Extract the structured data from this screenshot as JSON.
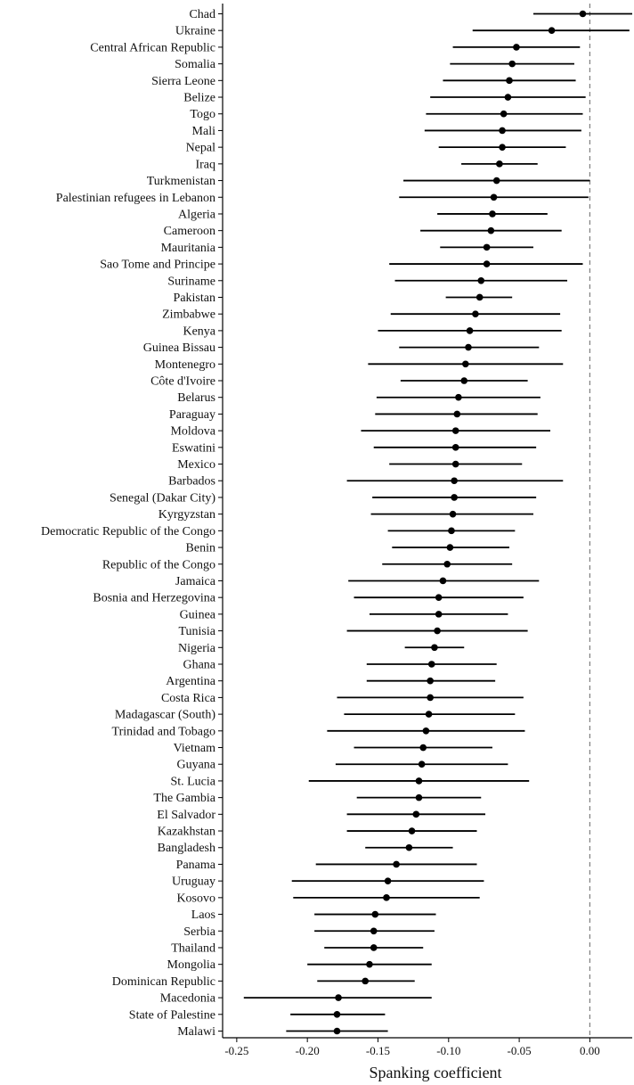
{
  "chart_data": {
    "type": "forest",
    "xlabel": "Spanking coefficient",
    "ylabel": "",
    "xlim": [
      -0.26,
      0.03
    ],
    "xticks": [
      -0.25,
      -0.2,
      -0.15,
      -0.1,
      -0.05,
      0.0
    ],
    "xtick_labels": [
      "-0.25",
      "-0.20",
      "-0.15",
      "-0.10",
      "-0.05",
      "0.00"
    ],
    "reference_line": 0,
    "grid": false,
    "colors": {
      "point": "#000000",
      "ci": "#000000",
      "ref_line": "#7f7f7f"
    },
    "rows": [
      {
        "label": "Chad",
        "estimate": -0.005,
        "ci_low": -0.04,
        "ci_high": 0.03
      },
      {
        "label": "Ukraine",
        "estimate": -0.027,
        "ci_low": -0.083,
        "ci_high": 0.028
      },
      {
        "label": "Central African Republic",
        "estimate": -0.052,
        "ci_low": -0.097,
        "ci_high": -0.007
      },
      {
        "label": "Somalia",
        "estimate": -0.055,
        "ci_low": -0.099,
        "ci_high": -0.011
      },
      {
        "label": "Sierra Leone",
        "estimate": -0.057,
        "ci_low": -0.104,
        "ci_high": -0.01
      },
      {
        "label": "Belize",
        "estimate": -0.058,
        "ci_low": -0.113,
        "ci_high": -0.003
      },
      {
        "label": "Togo",
        "estimate": -0.061,
        "ci_low": -0.116,
        "ci_high": -0.005
      },
      {
        "label": "Mali",
        "estimate": -0.062,
        "ci_low": -0.117,
        "ci_high": -0.006
      },
      {
        "label": "Nepal",
        "estimate": -0.062,
        "ci_low": -0.107,
        "ci_high": -0.017
      },
      {
        "label": "Iraq",
        "estimate": -0.064,
        "ci_low": -0.091,
        "ci_high": -0.037
      },
      {
        "label": "Turkmenistan",
        "estimate": -0.066,
        "ci_low": -0.132,
        "ci_high": 0.0
      },
      {
        "label": "Palestinian refugees in Lebanon",
        "estimate": -0.068,
        "ci_low": -0.135,
        "ci_high": -0.001
      },
      {
        "label": "Algeria",
        "estimate": -0.069,
        "ci_low": -0.108,
        "ci_high": -0.03
      },
      {
        "label": "Cameroon",
        "estimate": -0.07,
        "ci_low": -0.12,
        "ci_high": -0.02
      },
      {
        "label": "Mauritania",
        "estimate": -0.073,
        "ci_low": -0.106,
        "ci_high": -0.04
      },
      {
        "label": "Sao Tome and Principe",
        "estimate": -0.073,
        "ci_low": -0.142,
        "ci_high": -0.005
      },
      {
        "label": "Suriname",
        "estimate": -0.077,
        "ci_low": -0.138,
        "ci_high": -0.016
      },
      {
        "label": "Pakistan",
        "estimate": -0.078,
        "ci_low": -0.102,
        "ci_high": -0.055
      },
      {
        "label": "Zimbabwe",
        "estimate": -0.081,
        "ci_low": -0.141,
        "ci_high": -0.021
      },
      {
        "label": "Kenya",
        "estimate": -0.085,
        "ci_low": -0.15,
        "ci_high": -0.02
      },
      {
        "label": "Guinea Bissau",
        "estimate": -0.086,
        "ci_low": -0.135,
        "ci_high": -0.036
      },
      {
        "label": "Montenegro",
        "estimate": -0.088,
        "ci_low": -0.157,
        "ci_high": -0.019
      },
      {
        "label": "Côte d'Ivoire",
        "estimate": -0.089,
        "ci_low": -0.134,
        "ci_high": -0.044
      },
      {
        "label": "Belarus",
        "estimate": -0.093,
        "ci_low": -0.151,
        "ci_high": -0.035
      },
      {
        "label": "Paraguay",
        "estimate": -0.094,
        "ci_low": -0.152,
        "ci_high": -0.037
      },
      {
        "label": "Moldova",
        "estimate": -0.095,
        "ci_low": -0.162,
        "ci_high": -0.028
      },
      {
        "label": "Eswatini",
        "estimate": -0.095,
        "ci_low": -0.153,
        "ci_high": -0.038
      },
      {
        "label": "Mexico",
        "estimate": -0.095,
        "ci_low": -0.142,
        "ci_high": -0.048
      },
      {
        "label": "Barbados",
        "estimate": -0.096,
        "ci_low": -0.172,
        "ci_high": -0.019
      },
      {
        "label": "Senegal (Dakar City)",
        "estimate": -0.096,
        "ci_low": -0.154,
        "ci_high": -0.038
      },
      {
        "label": "Kyrgyzstan",
        "estimate": -0.097,
        "ci_low": -0.155,
        "ci_high": -0.04
      },
      {
        "label": "Democratic Republic of the Congo",
        "estimate": -0.098,
        "ci_low": -0.143,
        "ci_high": -0.053
      },
      {
        "label": "Benin",
        "estimate": -0.099,
        "ci_low": -0.14,
        "ci_high": -0.057
      },
      {
        "label": "Republic of the Congo",
        "estimate": -0.101,
        "ci_low": -0.147,
        "ci_high": -0.055
      },
      {
        "label": "Jamaica",
        "estimate": -0.104,
        "ci_low": -0.171,
        "ci_high": -0.036
      },
      {
        "label": "Bosnia and Herzegovina",
        "estimate": -0.107,
        "ci_low": -0.167,
        "ci_high": -0.047
      },
      {
        "label": "Guinea",
        "estimate": -0.107,
        "ci_low": -0.156,
        "ci_high": -0.058
      },
      {
        "label": "Tunisia",
        "estimate": -0.108,
        "ci_low": -0.172,
        "ci_high": -0.044
      },
      {
        "label": "Nigeria",
        "estimate": -0.11,
        "ci_low": -0.131,
        "ci_high": -0.089
      },
      {
        "label": "Ghana",
        "estimate": -0.112,
        "ci_low": -0.158,
        "ci_high": -0.066
      },
      {
        "label": "Argentina",
        "estimate": -0.113,
        "ci_low": -0.158,
        "ci_high": -0.067
      },
      {
        "label": "Costa Rica",
        "estimate": -0.113,
        "ci_low": -0.179,
        "ci_high": -0.047
      },
      {
        "label": "Madagascar (South)",
        "estimate": -0.114,
        "ci_low": -0.174,
        "ci_high": -0.053
      },
      {
        "label": "Trinidad and Tobago",
        "estimate": -0.116,
        "ci_low": -0.186,
        "ci_high": -0.046
      },
      {
        "label": "Vietnam",
        "estimate": -0.118,
        "ci_low": -0.167,
        "ci_high": -0.069
      },
      {
        "label": "Guyana",
        "estimate": -0.119,
        "ci_low": -0.18,
        "ci_high": -0.058
      },
      {
        "label": "St. Lucia",
        "estimate": -0.121,
        "ci_low": -0.199,
        "ci_high": -0.043
      },
      {
        "label": "The Gambia",
        "estimate": -0.121,
        "ci_low": -0.165,
        "ci_high": -0.077
      },
      {
        "label": "El Salvador",
        "estimate": -0.123,
        "ci_low": -0.172,
        "ci_high": -0.074
      },
      {
        "label": "Kazakhstan",
        "estimate": -0.126,
        "ci_low": -0.172,
        "ci_high": -0.08
      },
      {
        "label": "Bangladesh",
        "estimate": -0.128,
        "ci_low": -0.159,
        "ci_high": -0.097
      },
      {
        "label": "Panama",
        "estimate": -0.137,
        "ci_low": -0.194,
        "ci_high": -0.08
      },
      {
        "label": "Uruguay",
        "estimate": -0.143,
        "ci_low": -0.211,
        "ci_high": -0.075
      },
      {
        "label": "Kosovo",
        "estimate": -0.144,
        "ci_low": -0.21,
        "ci_high": -0.078
      },
      {
        "label": "Laos",
        "estimate": -0.152,
        "ci_low": -0.195,
        "ci_high": -0.109
      },
      {
        "label": "Serbia",
        "estimate": -0.153,
        "ci_low": -0.195,
        "ci_high": -0.11
      },
      {
        "label": "Thailand",
        "estimate": -0.153,
        "ci_low": -0.188,
        "ci_high": -0.118
      },
      {
        "label": "Mongolia",
        "estimate": -0.156,
        "ci_low": -0.2,
        "ci_high": -0.112
      },
      {
        "label": "Dominican Republic",
        "estimate": -0.159,
        "ci_low": -0.193,
        "ci_high": -0.124
      },
      {
        "label": "Macedonia",
        "estimate": -0.178,
        "ci_low": -0.245,
        "ci_high": -0.112
      },
      {
        "label": "State of Palestine",
        "estimate": -0.179,
        "ci_low": -0.212,
        "ci_high": -0.145
      },
      {
        "label": "Malawi",
        "estimate": -0.179,
        "ci_low": -0.215,
        "ci_high": -0.143
      }
    ]
  }
}
